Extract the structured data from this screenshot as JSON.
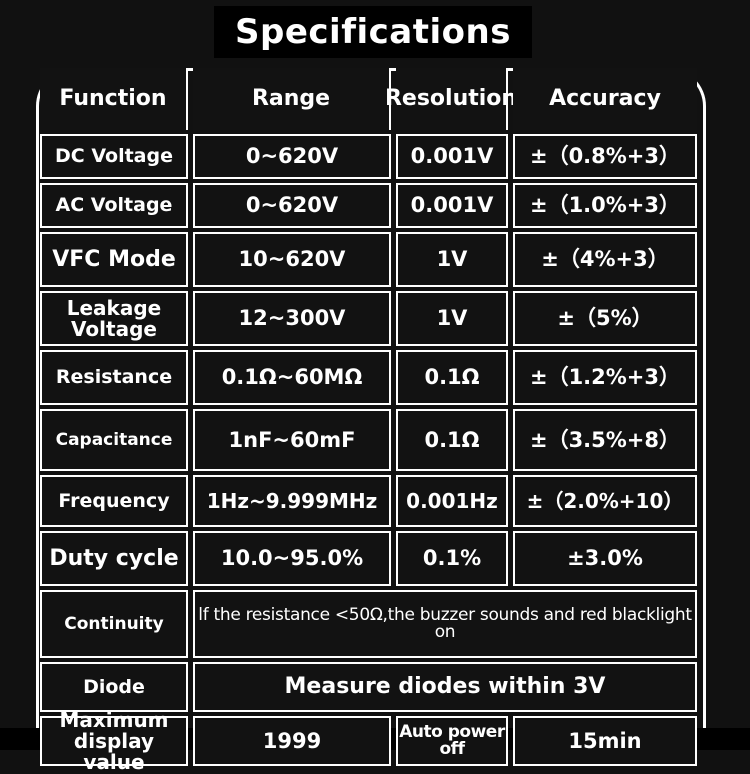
{
  "title": "Specifications",
  "headers": {
    "function": "Function",
    "range": "Range",
    "resolution": "Resolution",
    "accuracy": "Accuracy"
  },
  "rows": [
    {
      "function": "DC Voltage",
      "range": "0~620V",
      "resolution": "0.001V",
      "accuracy": "±（0.8%+3）"
    },
    {
      "function": "AC Voltage",
      "range": "0~620V",
      "resolution": "0.001V",
      "accuracy": "±（1.0%+3）"
    },
    {
      "function": "VFC Mode",
      "range": "10~620V",
      "resolution": "1V",
      "accuracy": "±（4%+3）"
    },
    {
      "function": "Leakage Voltage",
      "range": "12~300V",
      "resolution": "1V",
      "accuracy": "±（5%）"
    },
    {
      "function": "Resistance",
      "range": "0.1Ω~60MΩ",
      "resolution": "0.1Ω",
      "accuracy": "±（1.2%+3）"
    },
    {
      "function": "Capacitance",
      "range": "1nF~60mF",
      "resolution": "0.1Ω",
      "accuracy": "±（3.5%+8）"
    },
    {
      "function": "Frequency",
      "range": "1Hz~9.999MHz",
      "resolution": "0.001Hz",
      "accuracy": "±（2.0%+10）"
    },
    {
      "function": "Duty cycle",
      "range": "10.0~95.0%",
      "resolution": "0.1%",
      "accuracy": "±3.0%"
    }
  ],
  "continuity": {
    "function": "Continuity",
    "description": "lf the resistance <50Ω,the buzzer sounds and red blacklight on"
  },
  "diode": {
    "function": "Diode",
    "description": "Measure diodes within 3V"
  },
  "max_display": {
    "function": "Maximum display value",
    "value": "1999",
    "auto_power_label": "Auto power off",
    "auto_power_value": "15min"
  }
}
